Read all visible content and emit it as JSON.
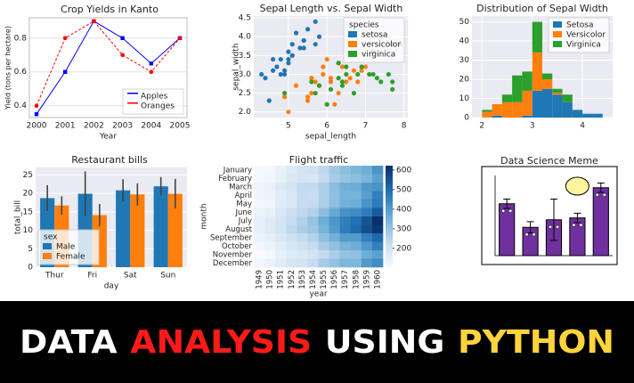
{
  "chart_data": [
    {
      "type": "line",
      "title": "Crop Yields in Kanto",
      "xlabel": "Year",
      "ylabel": "Yield (tons per hectare)",
      "background": "#ffffff",
      "grid": true,
      "legend": "lower right",
      "categories": [
        "2000",
        "2001",
        "2002",
        "2003",
        "2004",
        "2005"
      ],
      "ylim": [
        0.33,
        0.92
      ],
      "yticks": [
        0.4,
        0.6,
        0.8
      ],
      "series": [
        {
          "name": "Apples",
          "color": "#0000ff",
          "marker": "square",
          "linestyle": "solid",
          "values": [
            0.35,
            0.6,
            0.9,
            0.8,
            0.65,
            0.8
          ]
        },
        {
          "name": "Oranges",
          "color": "#ff0000",
          "marker": "circle",
          "linestyle": "dashed",
          "values": [
            0.4,
            0.8,
            0.9,
            0.7,
            0.6,
            0.8
          ]
        }
      ]
    },
    {
      "type": "scatter",
      "title": "Sepal Length vs. Sepal Width",
      "xlabel": "sepal_length",
      "ylabel": "sepal_width",
      "background": "#eaeaf2",
      "grid": true,
      "legend": "upper right",
      "legend_title": "species",
      "xlim": [
        4.1,
        8.1
      ],
      "xticks": [
        5,
        6,
        7,
        8
      ],
      "ylim": [
        1.85,
        4.55
      ],
      "yticks": [
        {
          "value": 2,
          "label": "2.0"
        },
        2.5,
        {
          "value": 3,
          "label": "3.0"
        },
        3.5,
        {
          "value": 4,
          "label": "4.0"
        },
        4.5
      ],
      "series": [
        {
          "name": "setosa",
          "color": "#1f77b4",
          "x": [
            5.1,
            4.9,
            4.7,
            4.6,
            5.0,
            5.4,
            4.6,
            5.0,
            4.4,
            4.9,
            5.4,
            4.8,
            4.8,
            4.3,
            5.8,
            5.7,
            5.4,
            5.1,
            5.7,
            5.1,
            5.2,
            5.5,
            4.5,
            5.3,
            5.0
          ],
          "values": [
            3.5,
            3.0,
            3.2,
            3.1,
            3.6,
            3.9,
            3.4,
            3.4,
            2.9,
            3.1,
            3.7,
            3.4,
            3.0,
            3.0,
            4.0,
            4.4,
            3.9,
            3.5,
            3.8,
            3.8,
            4.1,
            4.2,
            2.3,
            3.7,
            3.3
          ]
        },
        {
          "name": "versicolor",
          "color": "#ff7f0e",
          "x": [
            7.0,
            6.4,
            6.9,
            5.5,
            6.5,
            5.7,
            6.3,
            4.9,
            6.6,
            5.2,
            5.0,
            5.9,
            6.0,
            6.1,
            5.6,
            6.7,
            5.8,
            6.2,
            5.6,
            5.9,
            6.1,
            6.3,
            6.8,
            5.5,
            6.0
          ],
          "values": [
            3.2,
            3.2,
            3.1,
            2.3,
            2.8,
            2.8,
            3.3,
            2.4,
            2.9,
            2.7,
            2.0,
            3.0,
            2.2,
            2.9,
            2.9,
            3.1,
            2.7,
            2.2,
            2.5,
            3.2,
            2.8,
            2.5,
            2.8,
            2.4,
            3.4
          ]
        },
        {
          "name": "virginica",
          "color": "#2ca02c",
          "x": [
            6.3,
            5.8,
            7.1,
            6.3,
            6.5,
            7.6,
            4.9,
            7.3,
            6.7,
            7.2,
            6.5,
            6.4,
            6.8,
            5.7,
            7.7,
            7.7,
            6.0,
            6.9,
            5.6,
            7.7,
            7.9,
            6.4,
            7.2,
            6.1,
            7.4
          ],
          "values": [
            3.3,
            2.7,
            3.0,
            2.9,
            3.0,
            3.0,
            2.5,
            2.9,
            2.5,
            3.6,
            3.2,
            2.7,
            3.0,
            2.5,
            3.8,
            2.6,
            2.2,
            3.2,
            2.8,
            2.8,
            3.8,
            2.8,
            3.0,
            2.6,
            2.8
          ]
        }
      ]
    },
    {
      "type": "histogram",
      "title": "Distribution of Sepal Width",
      "background": "#eaeaf2",
      "grid": true,
      "legend": "upper right",
      "stacked": true,
      "bins": [
        2.0,
        2.2,
        2.4,
        2.6,
        2.8,
        3.0,
        3.2,
        3.4,
        3.6,
        3.8,
        4.0,
        4.2,
        4.4
      ],
      "xlim": [
        1.8,
        4.6
      ],
      "xticks": [
        2,
        3,
        4
      ],
      "ylim": [
        0,
        53
      ],
      "yticks": [
        0,
        10,
        20,
        30,
        40,
        50
      ],
      "series": [
        {
          "name": "Setosa",
          "color": "#1f77b4",
          "values": [
            0,
            1,
            0,
            0,
            1,
            14,
            15,
            12,
            8,
            4,
            2,
            2
          ]
        },
        {
          "name": "Versicolor",
          "color": "#ff7f0e",
          "values": [
            3,
            6,
            8,
            8,
            13,
            20,
            5,
            1,
            0,
            0,
            0,
            0
          ]
        },
        {
          "name": "Virginica",
          "color": "#2ca02c",
          "values": [
            1,
            0,
            4,
            14,
            10,
            16,
            3,
            2,
            4,
            0,
            0,
            0
          ]
        }
      ]
    },
    {
      "type": "bar",
      "title": "Restaurant bills",
      "xlabel": "day",
      "ylabel": "total_bill",
      "background": "#eaeaf2",
      "grid": true,
      "legend": "lower left",
      "legend_title": "sex",
      "categories": [
        "Thur",
        "Fri",
        "Sat",
        "Sun"
      ],
      "ylim": [
        0,
        27
      ],
      "yticks": [
        0,
        5,
        10,
        15,
        20,
        25
      ],
      "series": [
        {
          "name": "Male",
          "color": "#1f77b4",
          "values": [
            18.7,
            19.9,
            20.8,
            21.9
          ],
          "errors": [
            3.5,
            6,
            3,
            2.5
          ]
        },
        {
          "name": "Female",
          "color": "#ff7f0e",
          "values": [
            16.7,
            14.1,
            19.7,
            19.9
          ],
          "errors": [
            2.5,
            3,
            3,
            4
          ]
        }
      ]
    },
    {
      "type": "heatmap",
      "title": "Flight traffic",
      "xlabel": "year",
      "ylabel": "month",
      "colormap": "Blues",
      "categories": [
        "1949",
        "1950",
        "1951",
        "1952",
        "1953",
        "1954",
        "1955",
        "1956",
        "1957",
        "1958",
        "1959",
        "1960"
      ],
      "rows": [
        "January",
        "February",
        "March",
        "April",
        "May",
        "June",
        "July",
        "August",
        "September",
        "October",
        "November",
        "December"
      ],
      "zlim": [
        104,
        622
      ],
      "zticks": [
        200,
        300,
        400,
        500,
        600
      ],
      "values": [
        [
          112,
          115,
          145,
          171,
          196,
          204,
          242,
          284,
          315,
          340,
          360,
          417
        ],
        [
          118,
          126,
          150,
          180,
          196,
          188,
          233,
          277,
          301,
          318,
          342,
          391
        ],
        [
          132,
          141,
          178,
          193,
          236,
          235,
          267,
          317,
          356,
          362,
          406,
          419
        ],
        [
          129,
          135,
          163,
          181,
          235,
          227,
          269,
          313,
          348,
          348,
          396,
          461
        ],
        [
          121,
          125,
          172,
          183,
          229,
          234,
          270,
          318,
          355,
          363,
          420,
          472
        ],
        [
          135,
          149,
          178,
          218,
          243,
          264,
          315,
          374,
          422,
          435,
          472,
          535
        ],
        [
          148,
          170,
          199,
          230,
          264,
          302,
          364,
          413,
          465,
          491,
          548,
          622
        ],
        [
          148,
          170,
          199,
          242,
          272,
          293,
          347,
          405,
          467,
          505,
          559,
          606
        ],
        [
          136,
          158,
          184,
          209,
          237,
          259,
          312,
          355,
          404,
          404,
          463,
          508
        ],
        [
          119,
          133,
          162,
          191,
          211,
          229,
          274,
          306,
          347,
          359,
          407,
          461
        ],
        [
          104,
          114,
          146,
          172,
          180,
          203,
          237,
          271,
          305,
          310,
          362,
          390
        ],
        [
          118,
          140,
          166,
          194,
          201,
          229,
          278,
          306,
          336,
          337,
          405,
          432
        ]
      ]
    },
    {
      "type": "bar",
      "title": "Data Science Meme",
      "color": "#7030a0",
      "ylim": [
        0,
        85
      ],
      "values": [
        55,
        30,
        38,
        40,
        72
      ],
      "errors": [
        5,
        6,
        22,
        5,
        5
      ]
    }
  ],
  "banner": {
    "words": [
      {
        "text": "DATA",
        "color": "#ffffff"
      },
      {
        "text": "ANALYSIS",
        "color": "#ff1a1a"
      },
      {
        "text": "USING",
        "color": "#ffffff"
      },
      {
        "text": "PYTHON",
        "color": "#ffd43b"
      }
    ]
  }
}
